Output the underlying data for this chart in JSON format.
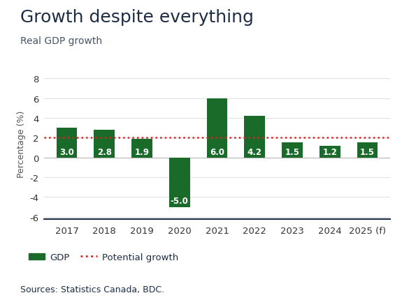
{
  "title": "Growth despite everything",
  "subtitle": "Real GDP growth",
  "categories": [
    "2017",
    "2018",
    "2019",
    "2020",
    "2021",
    "2022",
    "2023",
    "2024",
    "2025 (f)"
  ],
  "values": [
    3.0,
    2.8,
    1.9,
    -5.0,
    6.0,
    4.2,
    1.5,
    1.2,
    1.5
  ],
  "labels": [
    "3.0",
    "2.8",
    "1.9",
    "-5.0",
    "6.0",
    "4.2",
    "1.5",
    "1.2",
    "1.5"
  ],
  "bar_color": "#1a6b2a",
  "potential_growth": 2.0,
  "potential_growth_color": "#e02020",
  "ylim": [
    -6.2,
    9.0
  ],
  "yticks": [
    -6,
    -4,
    -2,
    0,
    2,
    4,
    6,
    8
  ],
  "ylabel": "Percentage (%)",
  "source_text": "Sources: Statistics Canada, BDC.",
  "legend_gdp_label": "GDP",
  "legend_potential_label": "Potential growth",
  "title_color": "#1d2d44",
  "subtitle_color": "#4a5568",
  "axis_bottom_color": "#1d2d44",
  "background_color": "#ffffff",
  "label_fontsize": 8.5,
  "title_fontsize": 18,
  "subtitle_fontsize": 10,
  "ylabel_fontsize": 9,
  "tick_fontsize": 9.5,
  "source_fontsize": 9,
  "grid_color": "#e0e0e0",
  "bar_width": 0.55
}
